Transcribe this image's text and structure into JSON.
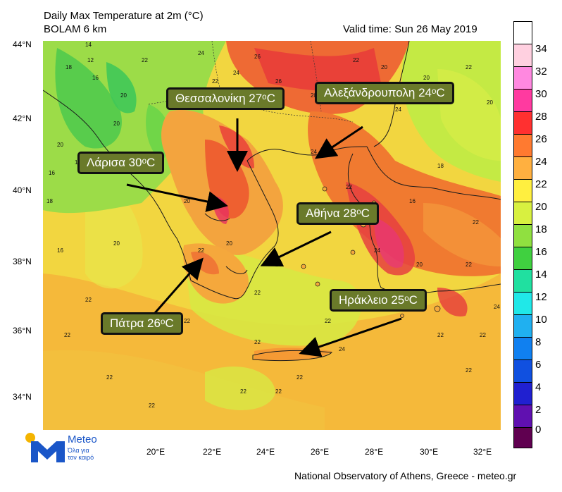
{
  "header": {
    "title": "Daily Max Temperature at 2m (°C)",
    "model": "BOLAM 6 km",
    "valid_time": "Valid time: Sun 26 May 2019"
  },
  "axes": {
    "lat_labels": [
      "44°N",
      "42°N",
      "40°N",
      "38°N",
      "36°N",
      "34°N"
    ],
    "lon_labels": [
      "20°E",
      "22°E",
      "24°E",
      "26°E",
      "28°E",
      "30°E",
      "32°E"
    ]
  },
  "colorbar": {
    "levels": [
      "34",
      "32",
      "30",
      "28",
      "26",
      "24",
      "22",
      "20",
      "18",
      "16",
      "14",
      "12",
      "10",
      "8",
      "6",
      "4",
      "2",
      "0"
    ],
    "colors": [
      "#ffffff",
      "#ffd0e0",
      "#ff88e0",
      "#ff3aa0",
      "#ff3030",
      "#ff7a30",
      "#ffb040",
      "#ffef40",
      "#d8f040",
      "#90e040",
      "#40d040",
      "#20e0a0",
      "#20e8e8",
      "#20b0f0",
      "#1080f0",
      "#1050e0",
      "#2020d0",
      "#6010b0",
      "#600050"
    ]
  },
  "cities": [
    {
      "name": "thessaloniki",
      "label": "Θεσσαλονίκη 27ᵒC"
    },
    {
      "name": "alexandroupoli",
      "label": "Αλεξάνδρουπολη 24ᵒC"
    },
    {
      "name": "larisa",
      "label": "Λάρισα 30ᵒC"
    },
    {
      "name": "athina",
      "label": "Αθήνα 28ᵒC"
    },
    {
      "name": "irakleio",
      "label": "Ηράκλειο 25ᵒC"
    },
    {
      "name": "patra",
      "label": "Πάτρα 26ᵒC"
    }
  ],
  "map_values": [
    "14",
    "12",
    "16",
    "18",
    "20",
    "22",
    "24",
    "26",
    "20",
    "16",
    "18",
    "20",
    "22",
    "24",
    "26",
    "22",
    "20",
    "20",
    "22",
    "20",
    "18",
    "16",
    "22",
    "24",
    "22",
    "24",
    "20",
    "22",
    "18",
    "16",
    "20",
    "22",
    "22",
    "22",
    "22",
    "20",
    "22",
    "22",
    "22",
    "22",
    "24",
    "22",
    "22",
    "20",
    "22",
    "20",
    "22",
    "26",
    "22",
    "22",
    "20",
    "24",
    "22",
    "24",
    "20",
    "22",
    "22"
  ],
  "logo": {
    "brand": "Meteo",
    "tagline_1": "Όλα για",
    "tagline_2": "τον καιρό"
  },
  "footer": {
    "credit": "National Observatory of Athens, Greece - meteo.gr"
  }
}
